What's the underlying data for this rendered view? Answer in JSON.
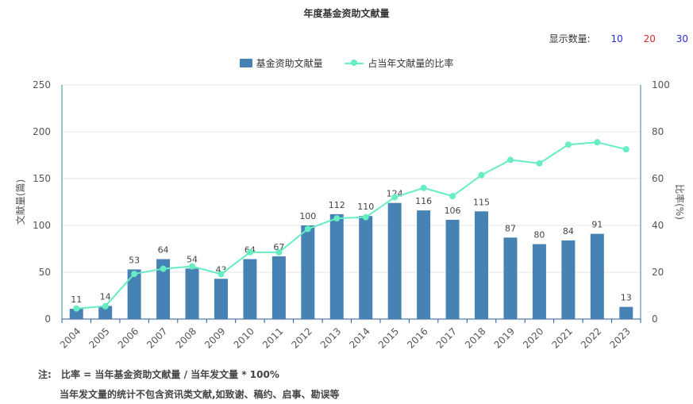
{
  "title": "年度基金资助文献量",
  "display_count": {
    "label": "显示数量:",
    "options": [
      "10",
      "20",
      "30"
    ]
  },
  "legend": {
    "bar": "基金资助文献量",
    "line": "占当年文献量的比率"
  },
  "notes": {
    "label": "注:",
    "line1": "比率 = 当年基金资助文献量 / 当年发文量 * 100%",
    "line2": "当年发文量的统计不包含资讯类文献,如致谢、稿约、启事、勘误等"
  },
  "colors": {
    "bar": "#4682b4",
    "line": "#66edc3",
    "axis": "#2a8a9a",
    "grid": "#e4e4e4"
  },
  "chart_data": {
    "type": "bar",
    "categories": [
      "2004",
      "2005",
      "2006",
      "2007",
      "2008",
      "2009",
      "2010",
      "2011",
      "2012",
      "2013",
      "2014",
      "2015",
      "2016",
      "2017",
      "2018",
      "2019",
      "2020",
      "2021",
      "2022",
      "2023"
    ],
    "series": [
      {
        "name": "基金资助文献量",
        "type": "bar",
        "axis": "left",
        "values": [
          11,
          14,
          53,
          64,
          54,
          43,
          64,
          67,
          100,
          112,
          110,
          124,
          116,
          106,
          115,
          87,
          80,
          84,
          91,
          13
        ]
      },
      {
        "name": "占当年文献量的比率",
        "type": "line",
        "axis": "right",
        "values": [
          4.5,
          5.5,
          19.3,
          21.5,
          22.5,
          19.2,
          28.5,
          28.5,
          38.5,
          43.0,
          43.5,
          52.0,
          56.0,
          52.5,
          61.5,
          68.0,
          66.5,
          74.5,
          75.5,
          72.5
        ]
      }
    ],
    "ylabel_left": "文献量(篇)",
    "ylabel_right": "比率(%)",
    "ylim_left": [
      0,
      250
    ],
    "yticks_left": [
      0,
      50,
      100,
      150,
      200,
      250
    ],
    "ylim_right": [
      0,
      100
    ],
    "yticks_right": [
      0,
      20,
      40,
      60,
      80,
      100
    ],
    "grid": true,
    "legend_position": "top-center"
  }
}
